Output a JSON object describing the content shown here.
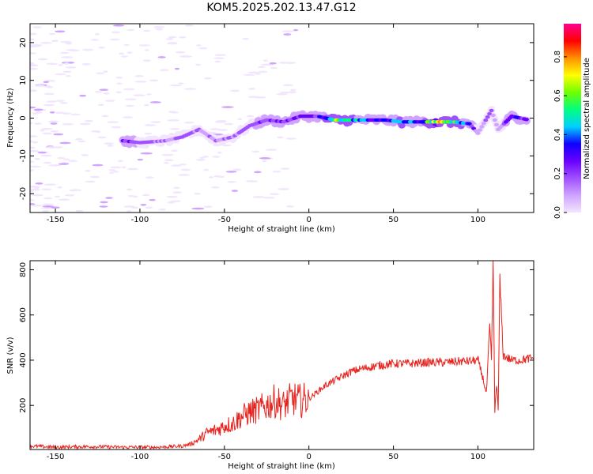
{
  "title": "KOM5.2025.202.13.47.G12",
  "colors": {
    "snr_line": "#e8231e",
    "spectrogram_stops": [
      "#f2e6ff",
      "#cfa3ff",
      "#a050ff",
      "#6a00ff",
      "#1000ff",
      "#00d0ff",
      "#00ff80",
      "#70ff00",
      "#ffff00",
      "#ff9000",
      "#ff0000",
      "#ff0090"
    ]
  },
  "chart_data": [
    {
      "type": "heatmap",
      "name": "spectrogram",
      "xlabel": "Height of straight line (km)",
      "ylabel": "Frequency (Hz)",
      "xlim": [
        -165,
        133
      ],
      "ylim": [
        -25,
        25
      ],
      "xticks": [
        -150,
        -100,
        -50,
        0,
        50,
        100
      ],
      "yticks": [
        -20,
        -10,
        0,
        10,
        20
      ],
      "colorbar": {
        "label": "Normalized spectral amplitude",
        "range": [
          0,
          0.97
        ],
        "ticks": [
          "0.0",
          "0.2",
          "0.4",
          "0.6",
          "0.8"
        ],
        "tick_values": [
          0.0,
          0.2,
          0.4,
          0.6,
          0.8
        ]
      },
      "ridge": [
        {
          "x": -110,
          "f": -6,
          "amp": 0.3
        },
        {
          "x": -100,
          "f": -6.5,
          "amp": 0.25
        },
        {
          "x": -85,
          "f": -6,
          "amp": 0.2
        },
        {
          "x": -75,
          "f": -5,
          "amp": 0.25
        },
        {
          "x": -65,
          "f": -3,
          "amp": 0.22
        },
        {
          "x": -55,
          "f": -6,
          "amp": 0.18
        },
        {
          "x": -45,
          "f": -5,
          "amp": 0.2
        },
        {
          "x": -35,
          "f": -2,
          "amp": 0.25
        },
        {
          "x": -25,
          "f": -0.5,
          "amp": 0.28
        },
        {
          "x": -15,
          "f": -1,
          "amp": 0.3
        },
        {
          "x": -5,
          "f": 0.5,
          "amp": 0.35
        },
        {
          "x": 5,
          "f": 0.5,
          "amp": 0.3
        },
        {
          "x": 15,
          "f": -0.5,
          "amp": 0.75
        },
        {
          "x": 25,
          "f": -0.5,
          "amp": 0.55
        },
        {
          "x": 35,
          "f": -0.5,
          "amp": 0.45
        },
        {
          "x": 45,
          "f": -0.5,
          "amp": 0.4
        },
        {
          "x": 55,
          "f": -1,
          "amp": 0.55
        },
        {
          "x": 65,
          "f": -1,
          "amp": 0.4
        },
        {
          "x": 75,
          "f": -1,
          "amp": 0.8
        },
        {
          "x": 85,
          "f": -1,
          "amp": 0.7
        },
        {
          "x": 95,
          "f": -1.5,
          "amp": 0.4
        },
        {
          "x": 100,
          "f": -4,
          "amp": 0.15
        },
        {
          "x": 108,
          "f": 2,
          "amp": 0.25
        },
        {
          "x": 112,
          "f": -3,
          "amp": 0.15
        },
        {
          "x": 120,
          "f": 0.5,
          "amp": 0.4
        },
        {
          "x": 130,
          "f": -0.5,
          "amp": 0.35
        }
      ]
    },
    {
      "type": "line",
      "name": "snr",
      "xlabel": "Height of straight line (km)",
      "ylabel": "SNR (v/v)",
      "xlim": [
        -165,
        133
      ],
      "ylim": [
        5,
        840
      ],
      "xticks": [
        -150,
        -100,
        -50,
        0,
        50,
        100
      ],
      "yticks": [
        200,
        400,
        600,
        800
      ],
      "series": [
        {
          "x": [
            -165,
            -150,
            -130,
            -110,
            -90,
            -75,
            -70,
            -65,
            -60,
            -55,
            -50,
            -45,
            -40,
            -35,
            -30,
            -25,
            -20,
            -15,
            -10,
            -5,
            0,
            5,
            10,
            15,
            20,
            25,
            30,
            40,
            50,
            60,
            70,
            80,
            90,
            95,
            100,
            103,
            105,
            107,
            108,
            109,
            110,
            111,
            112,
            113,
            115,
            120,
            125,
            133
          ],
          "y": [
            20,
            15,
            18,
            15,
            15,
            20,
            30,
            50,
            80,
            90,
            110,
            120,
            150,
            170,
            180,
            200,
            220,
            200,
            230,
            220,
            230,
            260,
            290,
            310,
            330,
            350,
            360,
            375,
            385,
            385,
            390,
            390,
            395,
            395,
            400,
            320,
            250,
            550,
            400,
            840,
            170,
            300,
            180,
            750,
            420,
            400,
            400,
            410
          ]
        }
      ]
    }
  ]
}
